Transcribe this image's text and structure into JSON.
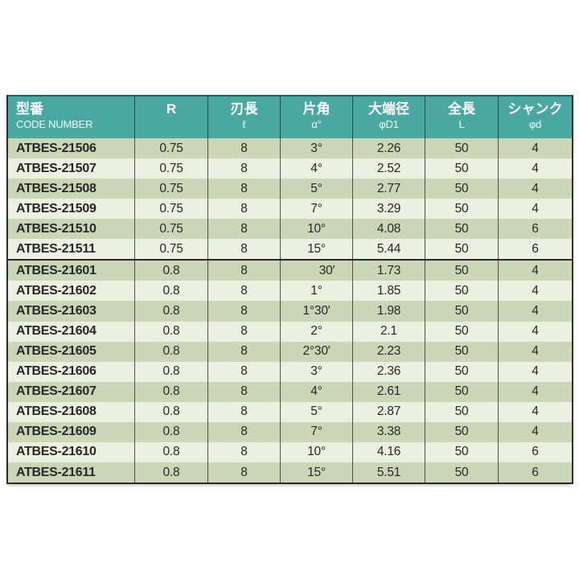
{
  "table": {
    "columns": [
      {
        "title": "型番",
        "sub": "CODE NUMBER"
      },
      {
        "title": "R",
        "sub": ""
      },
      {
        "title": "刃長",
        "sub": "ℓ"
      },
      {
        "title": "片角",
        "sub": "α°"
      },
      {
        "title": "大端径",
        "sub": "φD1"
      },
      {
        "title": "全長",
        "sub": "L"
      },
      {
        "title": "シャンク",
        "sub": "φd"
      }
    ],
    "column_keys": [
      "code-number",
      "r",
      "blade-length",
      "half-angle",
      "large-end-dia",
      "overall-length",
      "shank-dia"
    ],
    "groups": [
      {
        "rows": [
          [
            "ATBES-21506",
            "0.75",
            "8",
            "3°",
            "2.26",
            "50",
            "4"
          ],
          [
            "ATBES-21507",
            "0.75",
            "8",
            "4°",
            "2.52",
            "50",
            "4"
          ],
          [
            "ATBES-21508",
            "0.75",
            "8",
            "5°",
            "2.77",
            "50",
            "4"
          ],
          [
            "ATBES-21509",
            "0.75",
            "8",
            "7°",
            "3.29",
            "50",
            "4"
          ],
          [
            "ATBES-21510",
            "0.75",
            "8",
            "10°",
            "4.08",
            "50",
            "6"
          ],
          [
            "ATBES-21511",
            "0.75",
            "8",
            "15°",
            "5.44",
            "50",
            "6"
          ]
        ]
      },
      {
        "rows": [
          [
            "ATBES-21601",
            "0.8",
            "8",
            "30′",
            "1.73",
            "50",
            "4"
          ],
          [
            "ATBES-21602",
            "0.8",
            "8",
            "1°",
            "1.85",
            "50",
            "4"
          ],
          [
            "ATBES-21603",
            "0.8",
            "8",
            "1°30′",
            "1.98",
            "50",
            "4"
          ],
          [
            "ATBES-21604",
            "0.8",
            "8",
            "2°",
            "2.1",
            "50",
            "4"
          ],
          [
            "ATBES-21605",
            "0.8",
            "8",
            "2°30′",
            "2.23",
            "50",
            "4"
          ],
          [
            "ATBES-21606",
            "0.8",
            "8",
            "3°",
            "2.36",
            "50",
            "4"
          ],
          [
            "ATBES-21607",
            "0.8",
            "8",
            "4°",
            "2.61",
            "50",
            "4"
          ],
          [
            "ATBES-21608",
            "0.8",
            "8",
            "5°",
            "2.87",
            "50",
            "4"
          ],
          [
            "ATBES-21609",
            "0.8",
            "8",
            "7°",
            "3.38",
            "50",
            "4"
          ],
          [
            "ATBES-21610",
            "0.8",
            "8",
            "10°",
            "4.16",
            "50",
            "6"
          ],
          [
            "ATBES-21611",
            "0.8",
            "8",
            "15°",
            "5.51",
            "50",
            "6"
          ]
        ]
      }
    ]
  },
  "colors": {
    "header_bg": "#49a8a1",
    "header_text": "#ffffff",
    "row_dark": "#cbd6b6",
    "row_light": "#ebf0e0",
    "outer_border": "#2d2d2d",
    "group_separator": "#2a2a2a",
    "body_text": "#272727"
  }
}
